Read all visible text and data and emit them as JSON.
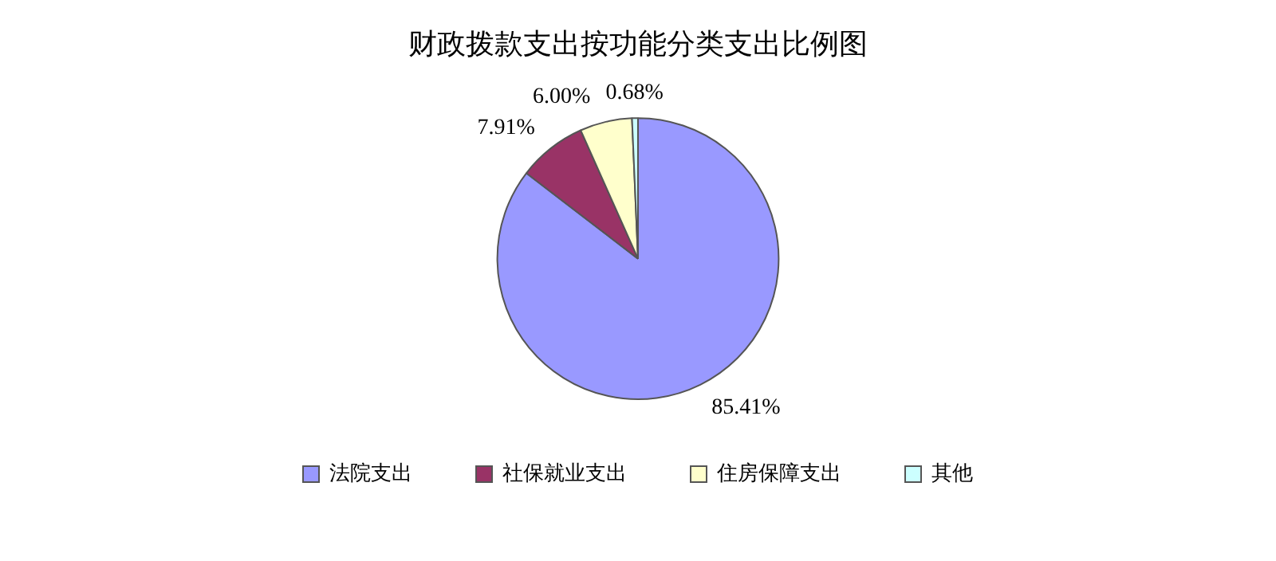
{
  "chart_data": {
    "type": "pie",
    "title": "财政拨款支出按功能分类支出比例图",
    "categories": [
      "法院支出",
      "社保就业支出",
      "住房保障支出",
      "其他"
    ],
    "values": [
      85.41,
      7.91,
      6.0,
      0.68
    ],
    "colors": [
      "#9999ff",
      "#993366",
      "#ffffcc",
      "#ccffff"
    ],
    "value_labels": [
      "85.41%",
      "7.91%",
      "6.00%",
      "0.68%"
    ],
    "legend": "bottom"
  }
}
